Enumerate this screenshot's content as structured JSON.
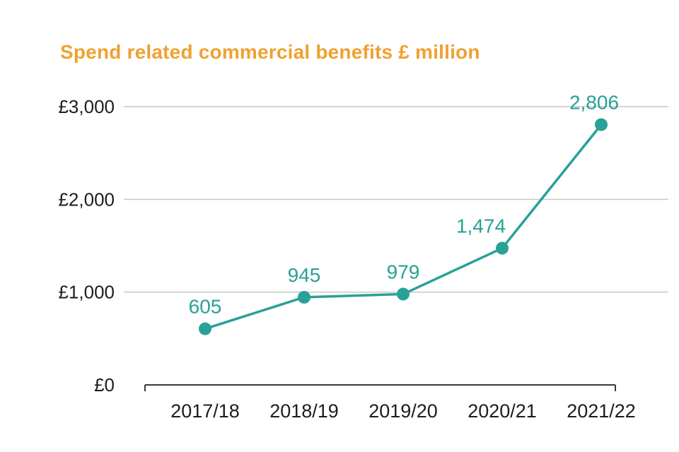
{
  "title": "Spend related commercial benefits £ million",
  "colors": {
    "title": "#efa131",
    "series": "#28a197",
    "gridline": "#c9c9c9",
    "axis": "#3a3a3a",
    "text": "#1d1d1d"
  },
  "chart_data": {
    "type": "line",
    "title": "Spend related commercial benefits £ million",
    "categories": [
      "2017/18",
      "2018/19",
      "2019/20",
      "2020/21",
      "2021/22"
    ],
    "values": [
      605,
      945,
      979,
      1474,
      2806
    ],
    "value_labels": [
      "605",
      "945",
      "979",
      "1,474",
      "2,806"
    ],
    "xlabel": "",
    "ylabel": "",
    "ylim": [
      0,
      3000
    ],
    "yticks": [
      0,
      1000,
      2000,
      3000
    ],
    "ytick_labels": [
      "£0",
      "£1,000",
      "£2,000",
      "£3,000"
    ],
    "grid": true,
    "legend": "none",
    "label_dx": [
      0,
      0,
      0,
      -30,
      -10
    ],
    "series_color": "#28a197",
    "marker": "circle"
  }
}
